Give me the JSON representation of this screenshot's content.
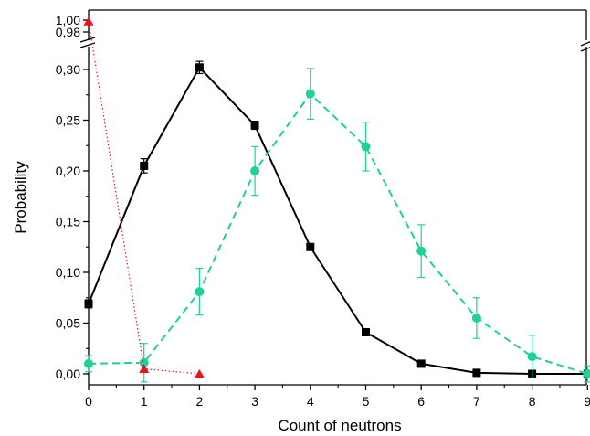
{
  "chart_data": {
    "type": "line",
    "xlabel": "Count of neutrons",
    "ylabel": "Probability",
    "xlim": [
      0,
      9
    ],
    "ylim_lower": [
      0,
      0.32
    ],
    "ylim_upper": [
      0.97,
      1.0
    ],
    "y_axis_break": "between 0,30 and 0,98",
    "x_ticks": [
      "0",
      "1",
      "2",
      "3",
      "4",
      "5",
      "6",
      "7",
      "8",
      "9"
    ],
    "y_ticks_lower": [
      "0,00",
      "0,05",
      "0,10",
      "0,15",
      "0,20",
      "0,25",
      "0,30"
    ],
    "y_ticks_upper": [
      "0,98",
      "1,00"
    ],
    "grid": false,
    "legend": "none",
    "series": [
      {
        "marker": "square",
        "line_style": "solid",
        "color": "#000000",
        "x": [
          0,
          1,
          2,
          3,
          4,
          5,
          6,
          7,
          8,
          9
        ],
        "y": [
          0.069,
          0.205,
          0.302,
          0.245,
          0.125,
          0.041,
          0.01,
          0.001,
          0.0,
          0.0
        ],
        "error": [
          0.004,
          0.007,
          0.006,
          0.004,
          0.002,
          0.002,
          0.001,
          0.001,
          0.0,
          0.0
        ]
      },
      {
        "marker": "circle",
        "line_style": "dashed",
        "color": "#1ed197",
        "x": [
          0,
          1,
          2,
          3,
          4,
          5,
          6,
          7,
          8,
          9
        ],
        "y": [
          0.01,
          0.011,
          0.081,
          0.2,
          0.276,
          0.224,
          0.121,
          0.055,
          0.017,
          0.0
        ],
        "error": [
          0.008,
          0.019,
          0.023,
          0.024,
          0.025,
          0.024,
          0.026,
          0.02,
          0.021,
          0.008
        ]
      },
      {
        "marker": "triangle",
        "line_style": "dotted",
        "color": "#e8141c",
        "x": [
          0,
          1,
          2
        ],
        "y": [
          0.998,
          0.005,
          0.0
        ],
        "error": [
          0,
          0,
          0
        ]
      }
    ]
  }
}
